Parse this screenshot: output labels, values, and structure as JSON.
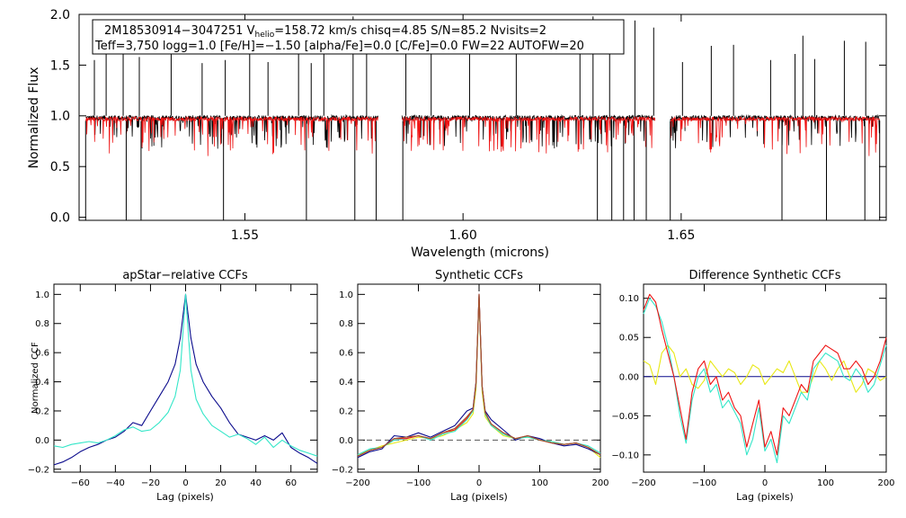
{
  "colors": {
    "black": "#000000",
    "red": "#ee1111",
    "cyan": "#33e6c8",
    "navy": "#0a0a8c",
    "yellow": "#e8e814",
    "brown": "#a0522d",
    "grey": "#555555"
  },
  "annotation": {
    "line1_id": "2M18530914−3047251  V",
    "line1_sub": "helio",
    "line1_rest": "=158.72 km/s  chisq=4.85  S/N=85.2  Nvisits=2",
    "line2": "Teff=3,750 logg=1.0 [Fe/H]=−1.50 [alpha/Fe]=0.0 [C/Fe]=0.0 FW=22 AUTOFW=20"
  },
  "chart_data": [
    {
      "id": "spectrum",
      "type": "line",
      "title": "",
      "xlabel": "Wavelength (microns)",
      "ylabel": "Normalized Flux",
      "xlim": [
        1.512,
        1.697
      ],
      "ylim": [
        -0.03,
        2.0
      ],
      "xticks": [
        1.55,
        1.6,
        1.65
      ],
      "xtick_labels": [
        "1.55",
        "1.60",
        "1.65"
      ],
      "yticks": [
        0.0,
        0.5,
        1.0,
        1.5,
        2.0
      ],
      "ytick_labels": [
        "0.0",
        "0.5",
        "1.0",
        "1.5",
        "2.0"
      ],
      "chips": [
        [
          1.5135,
          1.5805
        ],
        [
          1.586,
          1.644
        ],
        [
          1.6475,
          1.6955
        ]
      ],
      "series": [
        {
          "name": "observed",
          "color": "black",
          "baseline": 0.98,
          "noise": 0.025
        },
        {
          "name": "model",
          "color": "red",
          "baseline": 0.97,
          "noise": 0.02
        }
      ],
      "spikes_up": [
        1.5155,
        1.5182,
        1.5221,
        1.5258,
        1.5331,
        1.5402,
        1.5455,
        1.5511,
        1.5553,
        1.5623,
        1.5652,
        1.5681,
        1.5748,
        1.5779,
        1.5869,
        1.5927,
        1.6015,
        1.6122,
        1.6268,
        1.6298,
        1.6336,
        1.6394,
        1.6437,
        1.6503,
        1.6569,
        1.662,
        1.6705,
        1.6761,
        1.6779,
        1.6806,
        1.6874,
        1.6923
      ],
      "spikes_down": [
        1.5135,
        1.5228,
        1.5262,
        1.5451,
        1.5641,
        1.5752,
        1.5801,
        1.5862,
        1.6308,
        1.6341,
        1.6368,
        1.6392,
        1.642,
        1.6475,
        1.6731,
        1.6833,
        1.6921,
        1.6955
      ]
    },
    {
      "id": "ccf1",
      "type": "line",
      "title": "apStar−relative CCFs",
      "xlabel": "Lag (pixels)",
      "ylabel": "Normalized CCF",
      "xlim": [
        -75,
        75
      ],
      "ylim": [
        -0.22,
        1.07
      ],
      "xticks": [
        -60,
        -40,
        -20,
        0,
        20,
        40,
        60
      ],
      "xtick_labels": [
        "−60",
        "−40",
        "−20",
        "0",
        "20",
        "40",
        "60"
      ],
      "yticks": [
        -0.2,
        0.0,
        0.2,
        0.4,
        0.6,
        0.8,
        1.0
      ],
      "ytick_labels": [
        "−0.2",
        "0.0",
        "0.2",
        "0.4",
        "0.6",
        "0.8",
        "1.0"
      ],
      "series": [
        {
          "name": "ccf_a",
          "color": "navy",
          "x": [
            -75,
            -70,
            -65,
            -60,
            -55,
            -50,
            -45,
            -40,
            -35,
            -30,
            -25,
            -20,
            -15,
            -10,
            -6,
            -3,
            -1,
            0,
            1,
            3,
            6,
            10,
            15,
            20,
            25,
            30,
            35,
            40,
            45,
            50,
            55,
            60,
            65,
            70,
            75
          ],
          "y": [
            -0.17,
            -0.15,
            -0.12,
            -0.08,
            -0.05,
            -0.03,
            0.0,
            0.02,
            0.06,
            0.12,
            0.1,
            0.2,
            0.3,
            0.4,
            0.52,
            0.7,
            0.9,
            1.0,
            0.9,
            0.7,
            0.52,
            0.4,
            0.3,
            0.22,
            0.12,
            0.04,
            0.02,
            0.0,
            0.03,
            0.0,
            0.05,
            -0.05,
            -0.09,
            -0.12,
            -0.16
          ]
        },
        {
          "name": "ccf_b",
          "color": "cyan",
          "x": [
            -75,
            -70,
            -65,
            -60,
            -55,
            -50,
            -45,
            -40,
            -35,
            -30,
            -25,
            -20,
            -15,
            -10,
            -6,
            -3,
            -1,
            0,
            1,
            3,
            6,
            10,
            15,
            20,
            25,
            30,
            35,
            40,
            45,
            50,
            55,
            60,
            65,
            70,
            75
          ],
          "y": [
            -0.04,
            -0.05,
            -0.03,
            -0.02,
            -0.01,
            -0.02,
            0.0,
            0.03,
            0.07,
            0.09,
            0.06,
            0.07,
            0.12,
            0.19,
            0.3,
            0.48,
            0.82,
            1.0,
            0.82,
            0.48,
            0.28,
            0.18,
            0.1,
            0.06,
            0.02,
            0.04,
            0.01,
            -0.03,
            0.02,
            -0.05,
            0.0,
            -0.04,
            -0.07,
            -0.09,
            -0.11
          ]
        }
      ]
    },
    {
      "id": "ccf2",
      "type": "line",
      "title": "Synthetic CCFs",
      "xlabel": "Lag (pixels)",
      "ylabel": "",
      "xlim": [
        -200,
        200
      ],
      "ylim": [
        -0.22,
        1.07
      ],
      "xticks": [
        -200,
        -100,
        0,
        100,
        200
      ],
      "xtick_labels": [
        "−200",
        "−100",
        "0",
        "100",
        "200"
      ],
      "yticks": [
        -0.2,
        0.0,
        0.2,
        0.4,
        0.6,
        0.8,
        1.0
      ],
      "ytick_labels": [
        "−0.2",
        "0.0",
        "0.2",
        "0.4",
        "0.6",
        "0.8",
        "1.0"
      ],
      "hline": 0.0,
      "series": [
        {
          "name": "ccf_yellow",
          "color": "yellow",
          "x": [
            -200,
            -180,
            -160,
            -140,
            -120,
            -100,
            -80,
            -60,
            -40,
            -20,
            -10,
            -5,
            0,
            5,
            10,
            20,
            40,
            60,
            80,
            100,
            120,
            140,
            160,
            180,
            200
          ],
          "y": [
            -0.1,
            -0.07,
            -0.04,
            -0.02,
            0.0,
            0.02,
            0.01,
            0.03,
            0.07,
            0.12,
            0.18,
            0.35,
            0.98,
            0.33,
            0.16,
            0.1,
            0.03,
            0.01,
            0.02,
            0.0,
            -0.01,
            -0.03,
            -0.02,
            -0.05,
            -0.12
          ]
        },
        {
          "name": "ccf_navy",
          "color": "navy",
          "x": [
            -200,
            -180,
            -160,
            -140,
            -120,
            -100,
            -80,
            -60,
            -40,
            -20,
            -10,
            -5,
            0,
            5,
            10,
            20,
            40,
            60,
            80,
            100,
            120,
            140,
            160,
            180,
            200
          ],
          "y": [
            -0.12,
            -0.08,
            -0.06,
            0.03,
            0.02,
            0.05,
            0.02,
            0.06,
            0.1,
            0.2,
            0.22,
            0.4,
            1.0,
            0.37,
            0.2,
            0.14,
            0.07,
            0.0,
            0.03,
            0.01,
            -0.02,
            -0.04,
            -0.03,
            -0.06,
            -0.1
          ]
        },
        {
          "name": "ccf_cyan",
          "color": "cyan",
          "x": [
            -200,
            -180,
            -160,
            -140,
            -120,
            -100,
            -80,
            -60,
            -40,
            -20,
            -10,
            -5,
            0,
            5,
            10,
            20,
            40,
            60,
            80,
            100,
            120,
            140,
            160,
            180,
            200
          ],
          "y": [
            -0.1,
            -0.06,
            -0.05,
            0.0,
            0.01,
            0.03,
            0.0,
            0.04,
            0.06,
            0.14,
            0.2,
            0.38,
            0.99,
            0.36,
            0.18,
            0.1,
            0.04,
            0.01,
            0.02,
            0.0,
            -0.01,
            -0.03,
            -0.02,
            -0.04,
            -0.09
          ]
        },
        {
          "name": "ccf_red",
          "color": "red",
          "x": [
            -200,
            -180,
            -160,
            -140,
            -120,
            -100,
            -80,
            -60,
            -40,
            -20,
            -10,
            -5,
            0,
            5,
            10,
            20,
            40,
            60,
            80,
            100,
            120,
            140,
            160,
            180,
            200
          ],
          "y": [
            -0.11,
            -0.07,
            -0.05,
            0.01,
            0.01,
            0.03,
            0.01,
            0.05,
            0.07,
            0.15,
            0.21,
            0.39,
            1.0,
            0.37,
            0.19,
            0.11,
            0.05,
            0.01,
            0.03,
            0.0,
            -0.02,
            -0.03,
            -0.02,
            -0.05,
            -0.1
          ]
        },
        {
          "name": "ccf_brown",
          "color": "brown",
          "x": [
            -200,
            -180,
            -160,
            -140,
            -120,
            -100,
            -80,
            -60,
            -40,
            -20,
            -10,
            -5,
            0,
            5,
            10,
            20,
            40,
            60,
            80,
            100,
            120,
            140,
            160,
            180,
            200
          ],
          "y": [
            -0.11,
            -0.07,
            -0.05,
            0.01,
            0.02,
            0.03,
            0.01,
            0.05,
            0.08,
            0.16,
            0.21,
            0.39,
            1.0,
            0.37,
            0.19,
            0.11,
            0.05,
            0.01,
            0.03,
            0.0,
            -0.02,
            -0.03,
            -0.02,
            -0.05,
            -0.1
          ]
        }
      ]
    },
    {
      "id": "ccf3",
      "type": "line",
      "title": "Difference Synthetic CCFs",
      "xlabel": "Lag (pixels)",
      "ylabel": "",
      "xlim": [
        -200,
        200
      ],
      "ylim": [
        -0.122,
        0.118
      ],
      "xticks": [
        -200,
        -100,
        0,
        100,
        200
      ],
      "xtick_labels": [
        "−200",
        "−100",
        "0",
        "100",
        "200"
      ],
      "yticks": [
        -0.1,
        -0.05,
        0.0,
        0.05,
        0.1
      ],
      "ytick_labels": [
        "−0.10",
        "−0.05",
        "0.00",
        "0.05",
        "0.10"
      ],
      "hline": 0.0,
      "series": [
        {
          "name": "diff_yellow",
          "color": "yellow",
          "x": [
            -200,
            -190,
            -180,
            -170,
            -160,
            -150,
            -140,
            -130,
            -120,
            -110,
            -100,
            -90,
            -80,
            -70,
            -60,
            -50,
            -40,
            -30,
            -20,
            -10,
            0,
            10,
            20,
            30,
            40,
            50,
            60,
            70,
            80,
            90,
            100,
            110,
            120,
            130,
            140,
            150,
            160,
            170,
            180,
            190,
            200
          ],
          "y": [
            0.02,
            0.015,
            -0.01,
            0.03,
            0.04,
            0.03,
            0.0,
            0.01,
            -0.01,
            -0.015,
            -0.005,
            0.02,
            0.01,
            0.0,
            0.01,
            0.005,
            -0.01,
            0.0,
            0.015,
            0.01,
            -0.01,
            0.0,
            0.01,
            0.005,
            0.02,
            0.0,
            -0.02,
            -0.02,
            0.0,
            0.02,
            0.01,
            -0.005,
            0.01,
            0.02,
            0.0,
            -0.02,
            -0.01,
            0.01,
            0.005,
            -0.005,
            0.0
          ]
        },
        {
          "name": "diff_cyan",
          "color": "cyan",
          "x": [
            -200,
            -190,
            -180,
            -170,
            -160,
            -150,
            -140,
            -130,
            -120,
            -110,
            -100,
            -90,
            -80,
            -70,
            -60,
            -50,
            -40,
            -30,
            -20,
            -10,
            0,
            10,
            20,
            30,
            40,
            50,
            60,
            70,
            80,
            90,
            100,
            110,
            120,
            130,
            140,
            150,
            160,
            170,
            180,
            190,
            200
          ],
          "y": [
            0.08,
            0.1,
            0.09,
            0.07,
            0.04,
            0.0,
            -0.05,
            -0.085,
            -0.03,
            0.0,
            0.01,
            -0.02,
            -0.01,
            -0.04,
            -0.03,
            -0.045,
            -0.06,
            -0.1,
            -0.08,
            -0.04,
            -0.095,
            -0.08,
            -0.11,
            -0.05,
            -0.06,
            -0.04,
            -0.02,
            -0.03,
            0.01,
            0.02,
            0.03,
            0.025,
            0.02,
            0.0,
            -0.005,
            0.01,
            0.0,
            -0.02,
            -0.01,
            0.015,
            0.04
          ]
        },
        {
          "name": "diff_red",
          "color": "red",
          "x": [
            -200,
            -190,
            -180,
            -170,
            -160,
            -150,
            -140,
            -130,
            -120,
            -110,
            -100,
            -90,
            -80,
            -70,
            -60,
            -50,
            -40,
            -30,
            -20,
            -10,
            0,
            10,
            20,
            30,
            40,
            50,
            60,
            70,
            80,
            90,
            100,
            110,
            120,
            130,
            140,
            150,
            160,
            170,
            180,
            190,
            200
          ],
          "y": [
            0.085,
            0.105,
            0.095,
            0.06,
            0.03,
            0.0,
            -0.04,
            -0.08,
            -0.02,
            0.01,
            0.02,
            -0.01,
            0.0,
            -0.03,
            -0.02,
            -0.04,
            -0.05,
            -0.09,
            -0.06,
            -0.03,
            -0.09,
            -0.07,
            -0.1,
            -0.04,
            -0.05,
            -0.03,
            -0.01,
            -0.02,
            0.02,
            0.03,
            0.04,
            0.035,
            0.03,
            0.01,
            0.01,
            0.02,
            0.01,
            -0.01,
            0.0,
            0.02,
            0.05
          ]
        }
      ]
    }
  ]
}
